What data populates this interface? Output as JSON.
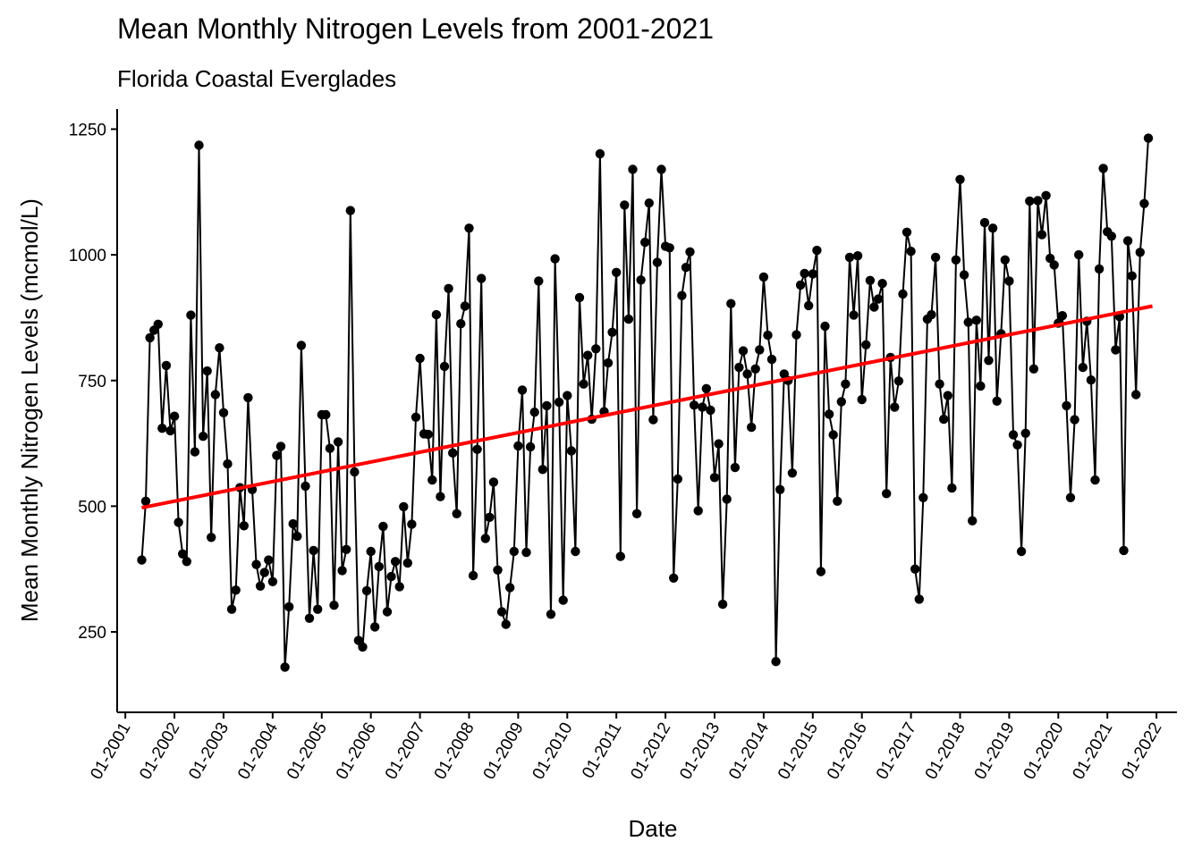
{
  "chart_data": {
    "type": "line",
    "title": "Mean Monthly Nitrogen Levels from 2001-2021",
    "subtitle": "Florida Coastal Everglades",
    "xlabel": "Date",
    "ylabel": "Mean Monthly Nitrogen Levels (mcmol/L)",
    "xlim": [
      "2000-11",
      "2022-06"
    ],
    "ylim": [
      90,
      1290
    ],
    "grid": false,
    "legend": "none",
    "x_ticks": [
      "01-2001",
      "01-2002",
      "01-2003",
      "01-2004",
      "01-2005",
      "01-2006",
      "01-2007",
      "01-2008",
      "01-2009",
      "01-2010",
      "01-2011",
      "01-2012",
      "01-2013",
      "01-2014",
      "01-2015",
      "01-2016",
      "01-2017",
      "01-2018",
      "01-2019",
      "01-2020",
      "01-2021",
      "01-2022"
    ],
    "y_ticks": [
      250,
      500,
      750,
      1000,
      1250
    ],
    "series": [
      {
        "color": "#000000",
        "marker": "circle",
        "start": "2001-05",
        "frequency": "monthly",
        "end": "2021-12",
        "values": [
          393,
          510,
          835,
          850,
          862,
          655,
          780,
          650,
          679,
          468,
          405,
          390,
          880,
          608,
          1218,
          639,
          769,
          438,
          722,
          815,
          686,
          584,
          295,
          333,
          537,
          461,
          716,
          533,
          384,
          341,
          368,
          393,
          350,
          601,
          619,
          180,
          300,
          465,
          440,
          820,
          540,
          277,
          412,
          295,
          682,
          682,
          615,
          303,
          628,
          372,
          414,
          1088,
          568,
          233,
          220,
          332,
          410,
          260,
          380,
          460,
          290,
          360,
          390,
          340,
          499,
          387,
          464,
          677,
          794,
          644,
          643,
          552,
          881,
          519,
          778,
          933,
          606,
          485,
          863,
          898,
          1053,
          362,
          613,
          953,
          436,
          478,
          548,
          373,
          290,
          265,
          338,
          410,
          620,
          731,
          408,
          618,
          687,
          948,
          573,
          700,
          285,
          992,
          707,
          313,
          720,
          610,
          410,
          915,
          743,
          800,
          673,
          813,
          1201,
          688,
          785,
          846,
          965,
          400,
          1099,
          872,
          1170,
          485,
          950,
          1025,
          1103,
          672,
          985,
          1170,
          1017,
          1014,
          357,
          554,
          919,
          975,
          1006,
          701,
          491,
          697,
          734,
          691,
          557,
          624,
          305,
          514,
          903,
          577,
          776,
          809,
          763,
          657,
          773,
          811,
          956,
          840,
          792,
          191,
          533,
          763,
          750,
          566,
          841,
          940,
          963,
          899,
          962,
          1009,
          370,
          858,
          683,
          642,
          510,
          708,
          743,
          995,
          880,
          998,
          712,
          821,
          949,
          896,
          912,
          943,
          525,
          796,
          697,
          749,
          922,
          1045,
          1007,
          375,
          315,
          517,
          872,
          881,
          995,
          743,
          673,
          720,
          536,
          990,
          1150,
          960,
          866,
          471,
          870,
          739,
          1064,
          790,
          1053,
          709,
          843,
          990,
          948,
          642,
          622,
          410,
          645,
          1107,
          773,
          1108,
          1040,
          1118,
          993,
          980,
          864,
          879,
          700,
          517,
          672,
          1000,
          776,
          868,
          751,
          552,
          972,
          1172,
          1046,
          1037,
          811,
          877,
          412,
          1028,
          958,
          722,
          1005,
          1102,
          1232
        ]
      },
      {
        "name": "trend",
        "color": "#ff0000",
        "type": "line",
        "x": [
          "2001-05",
          "2021-12"
        ],
        "values": [
          497,
          898
        ]
      }
    ]
  }
}
